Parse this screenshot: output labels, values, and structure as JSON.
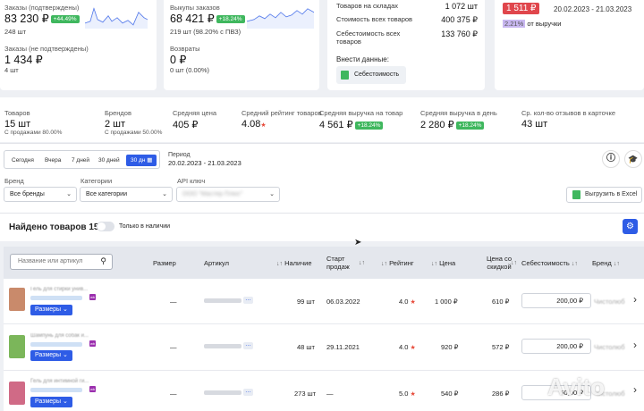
{
  "summary_cards": {
    "orders": {
      "label": "Заказы (подтверждены)",
      "value": "83 230 ₽",
      "badge": "+44.49%",
      "sub": "248 шт"
    },
    "orders_unconfirmed": {
      "label": "Заказы (не подтверждены)",
      "value": "1 434 ₽",
      "sub": "4 шт"
    },
    "buyouts": {
      "label": "Выкупы заказов",
      "value": "68 421 ₽",
      "badge": "+18.24%",
      "sub": "219 шт (98.20% с ПВЗ)"
    },
    "returns": {
      "label": "Возвраты",
      "value": "0 ₽",
      "sub": "0 шт (0.00%)"
    },
    "warehouse": {
      "rows": [
        {
          "label": "Товаров на складах",
          "value": "1 072 шт"
        },
        {
          "label": "Стоимость всех товаров",
          "value": "400 375 ₽"
        },
        {
          "label": "Себестоимость всех товаров",
          "value": "133 760 ₽"
        }
      ],
      "enter_label": "Внести данные:",
      "cost_button": "Себестоимость"
    },
    "right": {
      "value": "1 511 ₽",
      "period": "20.02.2023 - 21.03.2023",
      "percent": "2.21%",
      "percent_label": "от выручки"
    }
  },
  "stats": [
    {
      "label": "Товаров",
      "value": "15 шт",
      "sub": "С продажами 80.00%"
    },
    {
      "label": "Брендов",
      "value": "2 шт",
      "sub": "С продажами 50.00%"
    },
    {
      "label": "Средняя цена",
      "value": "405 ₽"
    },
    {
      "label": "Средний рейтинг товаров",
      "value": "4.08"
    },
    {
      "label": "Средняя выручка на товар",
      "value": "4 561 ₽",
      "badge": "+18.24%"
    },
    {
      "label": "Средняя выручка в день",
      "value": "2 280 ₽",
      "badge": "+18.24%"
    },
    {
      "label": "Ср. кол-во отзывов в карточке",
      "value": "43 шт"
    }
  ],
  "period_tabs": [
    "Сегодня",
    "Вчера",
    "7 дней",
    "30 дней",
    "30 дн"
  ],
  "period": {
    "label": "Период",
    "value": "20.02.2023 - 21.03.2023"
  },
  "filters": {
    "brand": {
      "label": "Бренд",
      "value": "Все бренды"
    },
    "category": {
      "label": "Категории",
      "value": "Все категории"
    },
    "api": {
      "label": "API ключ",
      "value": "ООО \"Мастер Плюс\""
    },
    "export": "Выгрузить в Excel"
  },
  "found": {
    "title": "Найдено товаров 15",
    "only_in_stock": "Только в наличии"
  },
  "search": {
    "placeholder": "Название или артикул"
  },
  "columns": [
    "Размер",
    "Артикул",
    "Наличие",
    "Старт продаж",
    "Рейтинг",
    "Цена",
    "Цена со скидкой",
    "Себестоимость",
    "Бренд"
  ],
  "sizes_button": "Размеры",
  "rows": [
    {
      "title": "Гель для стирки унив...",
      "size": "—",
      "stock": "99 шт",
      "start": "06.03.2022",
      "rating": "4.0",
      "price": "1 000 ₽",
      "discount": "610 ₽",
      "cost": "200,00 ₽",
      "brand": "Чистолюб",
      "color": "#c98a6b"
    },
    {
      "title": "Шампунь для собак и...",
      "size": "—",
      "stock": "48 шт",
      "start": "29.11.2021",
      "rating": "4.0",
      "price": "920 ₽",
      "discount": "572 ₽",
      "cost": "200,00 ₽",
      "brand": "Чистолюб",
      "color": "#7bb65a"
    },
    {
      "title": "Гель для интимной ги...",
      "size": "—",
      "stock": "273 шт",
      "start": "—",
      "rating": "5.0",
      "price": "540 ₽",
      "discount": "286 ₽",
      "cost": "50,00 ₽",
      "brand": "Чистолюб",
      "color": "#d06a86"
    }
  ],
  "watermark": "Avito",
  "colors": {
    "accent": "#2e5ce6",
    "success": "#3fb75e",
    "danger": "#e74c3c"
  }
}
